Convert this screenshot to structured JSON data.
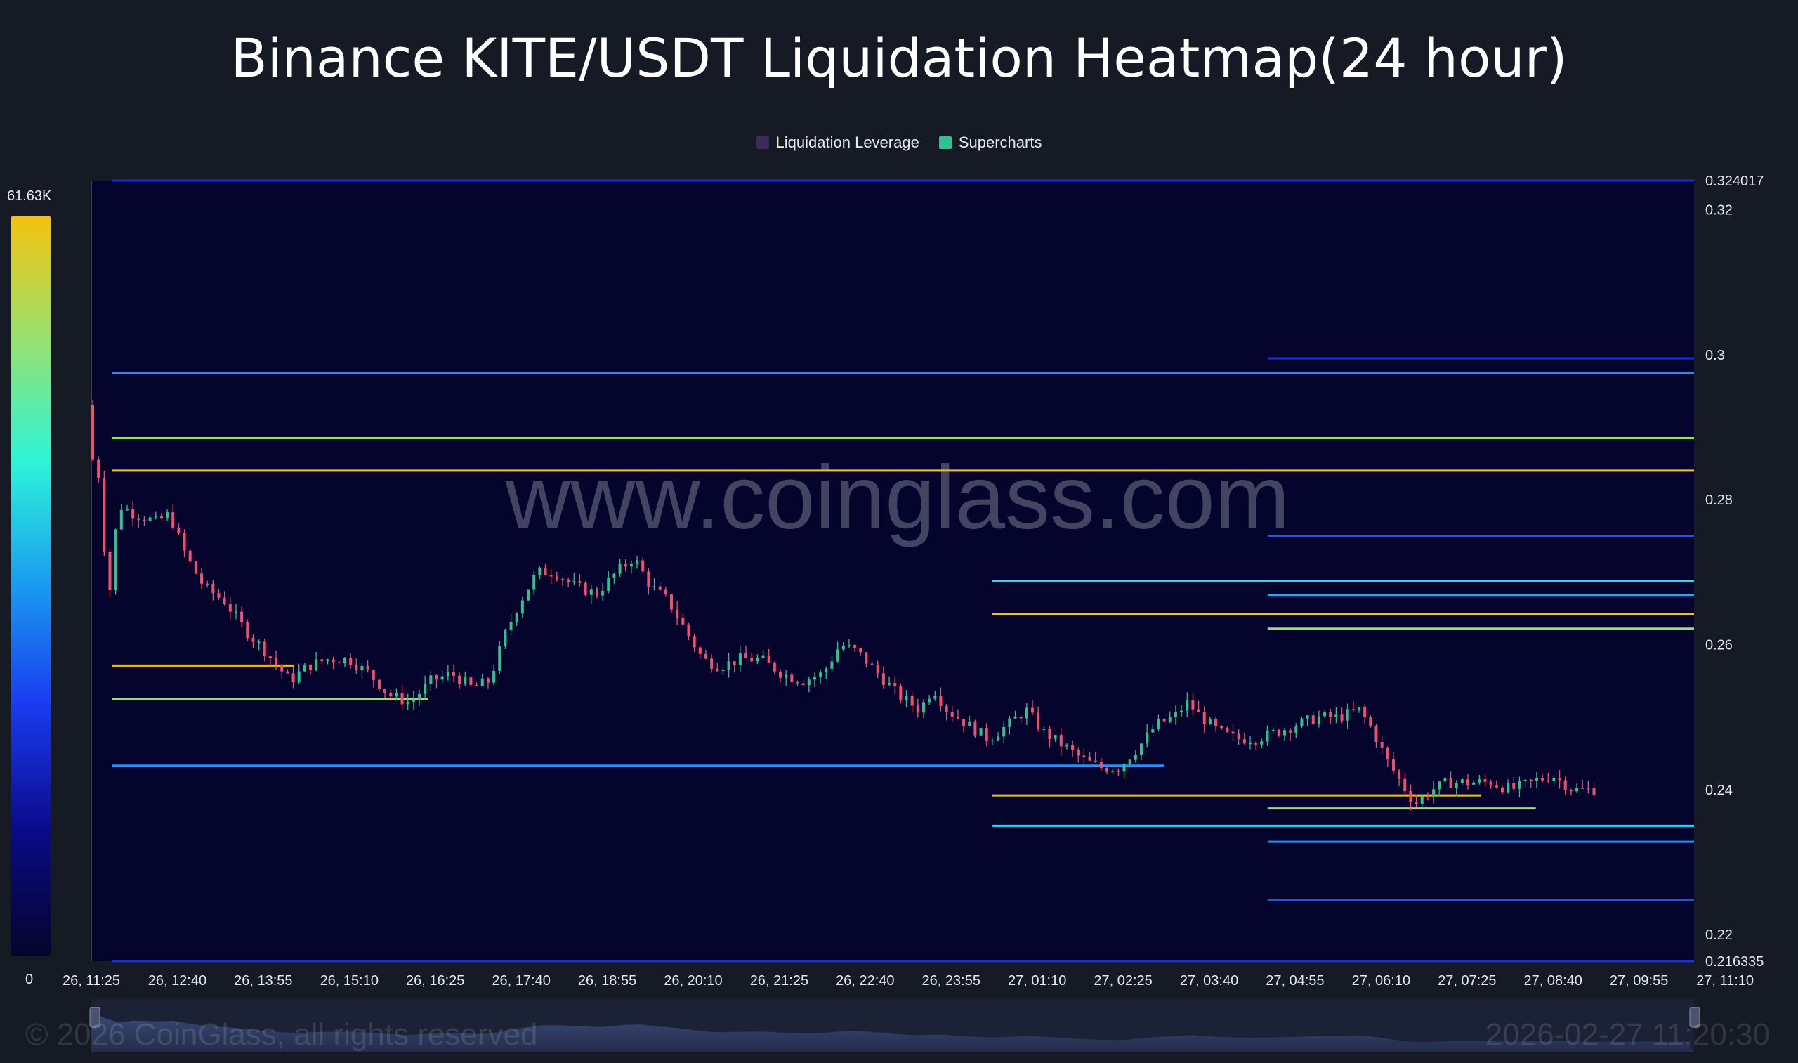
{
  "title": "Binance KITE/USDT Liquidation Heatmap(24 hour)",
  "legend": [
    {
      "label": "Liquidation Leverage",
      "color": "#3a2a5e"
    },
    {
      "label": "Supercharts",
      "color": "#2ec28e"
    }
  ],
  "colorbar": {
    "max_label": "61.63K",
    "min_label": "0",
    "stops": [
      "#f4c20d",
      "#9be06a",
      "#2ef5d8",
      "#1a9bf0",
      "#1a3cf0",
      "#0a0a8a",
      "#05052a"
    ]
  },
  "watermark": "www.coinglass.com",
  "footer": {
    "copyright": "© 2026 CoinGlass, all rights reserved",
    "timestamp": "2026-02-27 11:20:30"
  },
  "colors": {
    "background": "#161a25",
    "plot": "#05042c",
    "up": "#2ec28e",
    "down": "#f0506e"
  },
  "chart_data": {
    "type": "heatmap",
    "x_tick_labels": [
      "26, 11:25",
      "26, 12:40",
      "26, 13:55",
      "26, 15:10",
      "26, 16:25",
      "26, 17:40",
      "26, 18:55",
      "26, 20:10",
      "26, 21:25",
      "26, 22:40",
      "26, 23:55",
      "27, 01:10",
      "27, 02:25",
      "27, 03:40",
      "27, 04:55",
      "27, 06:10",
      "27, 07:25",
      "27, 08:40",
      "27, 09:55",
      "27, 11:10"
    ],
    "y_tick_labels": [
      "0.324017",
      "0.32",
      "0.3",
      "0.28",
      "0.26",
      "0.24",
      "0.22",
      "0.216335"
    ],
    "y_tick_values": [
      0.324017,
      0.32,
      0.3,
      0.28,
      0.26,
      0.24,
      0.22,
      0.216335
    ],
    "ylim": [
      0.216335,
      0.324017
    ],
    "xlim": [
      0,
      23.3
    ],
    "x_tick_step_hours": 1.25,
    "price_series": [
      [
        0.0,
        0.293
      ],
      [
        0.1,
        0.284
      ],
      [
        0.2,
        0.283
      ],
      [
        0.3,
        0.264
      ],
      [
        0.4,
        0.275
      ],
      [
        0.5,
        0.279
      ],
      [
        0.7,
        0.278
      ],
      [
        1.0,
        0.277
      ],
      [
        1.2,
        0.278
      ],
      [
        1.45,
        0.272
      ],
      [
        1.7,
        0.268
      ],
      [
        2.0,
        0.266
      ],
      [
        2.3,
        0.262
      ],
      [
        2.6,
        0.259
      ],
      [
        2.95,
        0.255
      ],
      [
        3.2,
        0.257
      ],
      [
        3.5,
        0.258
      ],
      [
        3.8,
        0.258
      ],
      [
        4.1,
        0.256
      ],
      [
        4.4,
        0.253
      ],
      [
        4.7,
        0.252
      ],
      [
        5.0,
        0.255
      ],
      [
        5.3,
        0.256
      ],
      [
        5.6,
        0.254
      ],
      [
        5.85,
        0.255
      ],
      [
        6.1,
        0.262
      ],
      [
        6.3,
        0.266
      ],
      [
        6.55,
        0.27
      ],
      [
        6.8,
        0.27
      ],
      [
        7.1,
        0.268
      ],
      [
        7.4,
        0.267
      ],
      [
        7.7,
        0.27
      ],
      [
        7.95,
        0.272
      ],
      [
        8.2,
        0.268
      ],
      [
        8.45,
        0.266
      ],
      [
        8.7,
        0.262
      ],
      [
        8.95,
        0.258
      ],
      [
        9.2,
        0.257
      ],
      [
        9.5,
        0.258
      ],
      [
        9.8,
        0.258
      ],
      [
        10.1,
        0.256
      ],
      [
        10.4,
        0.255
      ],
      [
        10.7,
        0.256
      ],
      [
        10.95,
        0.26
      ],
      [
        11.2,
        0.259
      ],
      [
        11.5,
        0.256
      ],
      [
        11.8,
        0.253
      ],
      [
        12.1,
        0.251
      ],
      [
        12.3,
        0.254
      ],
      [
        12.5,
        0.251
      ],
      [
        12.8,
        0.249
      ],
      [
        13.1,
        0.247
      ],
      [
        13.4,
        0.249
      ],
      [
        13.65,
        0.251
      ],
      [
        13.9,
        0.248
      ],
      [
        14.2,
        0.246
      ],
      [
        14.5,
        0.244
      ],
      [
        14.75,
        0.243
      ],
      [
        15.0,
        0.243
      ],
      [
        15.3,
        0.246
      ],
      [
        15.55,
        0.249
      ],
      [
        15.8,
        0.25
      ],
      [
        16.0,
        0.252
      ],
      [
        16.2,
        0.25
      ],
      [
        16.45,
        0.248
      ],
      [
        16.7,
        0.247
      ],
      [
        17.0,
        0.247
      ],
      [
        17.3,
        0.248
      ],
      [
        17.6,
        0.249
      ],
      [
        17.9,
        0.25
      ],
      [
        18.2,
        0.25
      ],
      [
        18.5,
        0.251
      ],
      [
        18.7,
        0.248
      ],
      [
        18.9,
        0.244
      ],
      [
        19.1,
        0.241
      ],
      [
        19.3,
        0.238
      ],
      [
        19.55,
        0.24
      ],
      [
        19.8,
        0.241
      ],
      [
        20.1,
        0.241
      ],
      [
        20.4,
        0.241
      ],
      [
        20.7,
        0.24
      ],
      [
        21.0,
        0.241
      ],
      [
        21.3,
        0.242
      ],
      [
        21.6,
        0.24
      ],
      [
        21.85,
        0.24
      ]
    ],
    "liquidation_levels": [
      {
        "price": 0.2975,
        "x_start": 0.3,
        "x_end": 23.3,
        "color": "#1e90ff"
      },
      {
        "price": 0.2885,
        "x_start": 0.3,
        "x_end": 23.3,
        "color": "#9be06a"
      },
      {
        "price": 0.284,
        "x_start": 0.3,
        "x_end": 23.3,
        "color": "#f4c20d"
      },
      {
        "price": 0.2995,
        "x_start": 17.1,
        "x_end": 23.3,
        "color": "#1a2fd8"
      },
      {
        "price": 0.275,
        "x_start": 17.1,
        "x_end": 23.3,
        "color": "#1a55f0"
      },
      {
        "price": 0.2688,
        "x_start": 13.1,
        "x_end": 23.3,
        "color": "#2ed8f0"
      },
      {
        "price": 0.2668,
        "x_start": 17.1,
        "x_end": 23.3,
        "color": "#25a8f0"
      },
      {
        "price": 0.2642,
        "x_start": 13.1,
        "x_end": 23.3,
        "color": "#f4c20d"
      },
      {
        "price": 0.2622,
        "x_start": 17.1,
        "x_end": 23.3,
        "color": "#9be06a"
      },
      {
        "price": 0.2571,
        "x_start": 0.3,
        "x_end": 2.95,
        "color": "#f4c20d"
      },
      {
        "price": 0.2525,
        "x_start": 0.3,
        "x_end": 4.9,
        "color": "#9be06a"
      },
      {
        "price": 0.2433,
        "x_start": 0.3,
        "x_end": 15.6,
        "color": "#1e90ff"
      },
      {
        "price": 0.2392,
        "x_start": 13.1,
        "x_end": 20.2,
        "color": "#f4c20d"
      },
      {
        "price": 0.2374,
        "x_start": 17.1,
        "x_end": 21.0,
        "color": "#9be06a"
      },
      {
        "price": 0.235,
        "x_start": 13.1,
        "x_end": 23.3,
        "color": "#2ed8f0"
      },
      {
        "price": 0.2328,
        "x_start": 17.1,
        "x_end": 23.3,
        "color": "#1e90ff"
      },
      {
        "price": 0.2248,
        "x_start": 17.1,
        "x_end": 23.3,
        "color": "#1a55f0"
      },
      {
        "price": 0.324017,
        "x_start": 0.3,
        "x_end": 23.3,
        "color": "#1a2fd8"
      },
      {
        "price": 0.216335,
        "x_start": 0.3,
        "x_end": 23.3,
        "color": "#1a2fd8"
      }
    ]
  }
}
